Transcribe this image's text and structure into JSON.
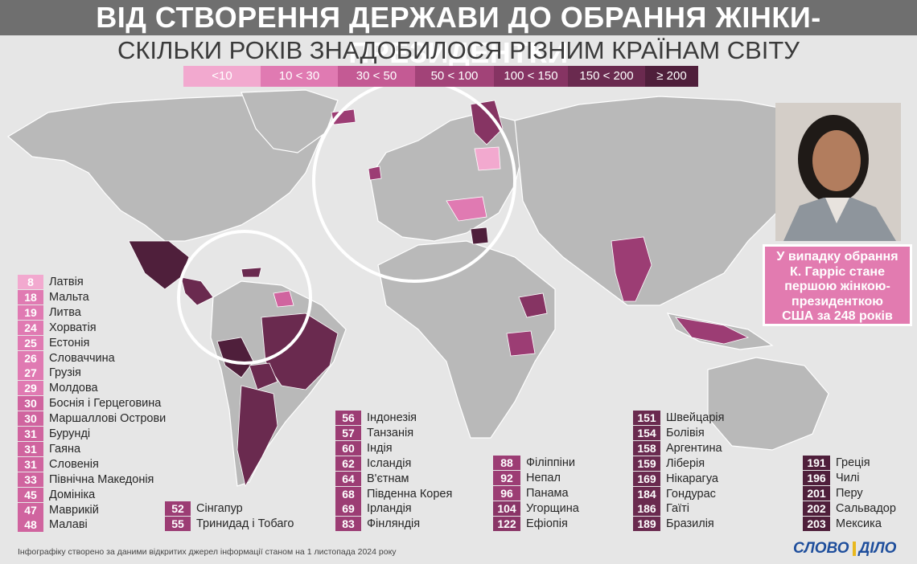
{
  "title": "ВІД СТВОРЕННЯ ДЕРЖАВИ ДО ОБРАННЯ ЖІНКИ-ПРЕЗИДЕНТКИ",
  "subtitle": "СКІЛЬКИ РОКІВ ЗНАДОБИЛОСЯ РІЗНИМ КРАЇНАМ СВІТУ",
  "legend": [
    {
      "label": "<10",
      "color": "#f2a9cf"
    },
    {
      "label": "10 < 30",
      "color": "#e07ab2"
    },
    {
      "label": "30 < 50",
      "color": "#c45a94"
    },
    {
      "label": "50 < 100",
      "color": "#a24378"
    },
    {
      "label": "100 < 150",
      "color": "#863463"
    },
    {
      "label": "150 < 200",
      "color": "#6a2a4f"
    },
    {
      "label": "≥ 200",
      "color": "#4f1f3b"
    }
  ],
  "columns": [
    {
      "color": "#e07ab2",
      "entries": [
        {
          "value": "8",
          "name": "Латвія",
          "color": "#f2a9cf"
        },
        {
          "value": "18",
          "name": "Мальта"
        },
        {
          "value": "19",
          "name": "Литва"
        },
        {
          "value": "24",
          "name": "Хорватія"
        },
        {
          "value": "25",
          "name": "Естонія"
        },
        {
          "value": "26",
          "name": "Словаччина"
        },
        {
          "value": "27",
          "name": "Грузія"
        },
        {
          "value": "29",
          "name": "Молдова"
        },
        {
          "value": "30",
          "name": "Боснія і Герцеговина",
          "color": "#d0649f"
        },
        {
          "value": "30",
          "name": "Маршаллові Острови",
          "color": "#d0649f"
        },
        {
          "value": "31",
          "name": "Бурунді",
          "color": "#d0649f"
        },
        {
          "value": "31",
          "name": "Гаяна",
          "color": "#d0649f"
        },
        {
          "value": "31",
          "name": "Словенія",
          "color": "#d0649f"
        },
        {
          "value": "33",
          "name": "Північна Македонія",
          "color": "#d0649f"
        },
        {
          "value": "45",
          "name": "Домініка",
          "color": "#d0649f"
        },
        {
          "value": "47",
          "name": "Маврикій",
          "color": "#d0649f"
        },
        {
          "value": "48",
          "name": "Малаві",
          "color": "#d0649f"
        }
      ]
    },
    {
      "color": "#9c3d74",
      "entries": [
        {
          "value": "52",
          "name": "Сінгапур"
        },
        {
          "value": "55",
          "name": "Тринидад і Тобаго"
        }
      ]
    },
    {
      "color": "#9c3d74",
      "entries": [
        {
          "value": "56",
          "name": "Індонезія"
        },
        {
          "value": "57",
          "name": "Танзанія"
        },
        {
          "value": "60",
          "name": "Індія"
        },
        {
          "value": "62",
          "name": "Ісландія"
        },
        {
          "value": "64",
          "name": "В'єтнам"
        },
        {
          "value": "68",
          "name": "Південна Корея"
        },
        {
          "value": "69",
          "name": "Ірландія"
        },
        {
          "value": "83",
          "name": "Фінляндія"
        }
      ]
    },
    {
      "color": "#8a3567",
      "entries": [
        {
          "value": "88",
          "name": "Філіппіни",
          "color": "#9c3d74"
        },
        {
          "value": "92",
          "name": "Непал",
          "color": "#9c3d74"
        },
        {
          "value": "96",
          "name": "Панама",
          "color": "#9c3d74"
        },
        {
          "value": "104",
          "name": "Угорщина"
        },
        {
          "value": "122",
          "name": "Ефіопія"
        }
      ]
    },
    {
      "color": "#6a2a4f",
      "entries": [
        {
          "value": "151",
          "name": "Швейцарія"
        },
        {
          "value": "154",
          "name": "Болівія"
        },
        {
          "value": "158",
          "name": "Аргентина"
        },
        {
          "value": "159",
          "name": "Ліберія"
        },
        {
          "value": "169",
          "name": "Нікарагуа"
        },
        {
          "value": "184",
          "name": "Гондурас"
        },
        {
          "value": "186",
          "name": "Гаїті"
        },
        {
          "value": "189",
          "name": "Бразилія"
        }
      ]
    },
    {
      "color": "#4f1f3b",
      "entries": [
        {
          "value": "191",
          "name": "Греція"
        },
        {
          "value": "196",
          "name": "Чилі"
        },
        {
          "value": "201",
          "name": "Перу"
        },
        {
          "value": "202",
          "name": "Сальвадор"
        },
        {
          "value": "203",
          "name": "Мексика"
        }
      ]
    }
  ],
  "callout": {
    "line1": "У випадку обрання",
    "line2": "К. Гарріс стане",
    "line3": "першою жінкою-",
    "line4": "президенткою",
    "line5": "США за 248 років"
  },
  "footnote": "Інфографіку створено за даними відкритих джерел інформації станом на 1 листопада 2024 року",
  "logo": {
    "left": "СЛОВО",
    "right": "ДІЛО"
  },
  "watermark": "СЛОВО І ДІЛО"
}
